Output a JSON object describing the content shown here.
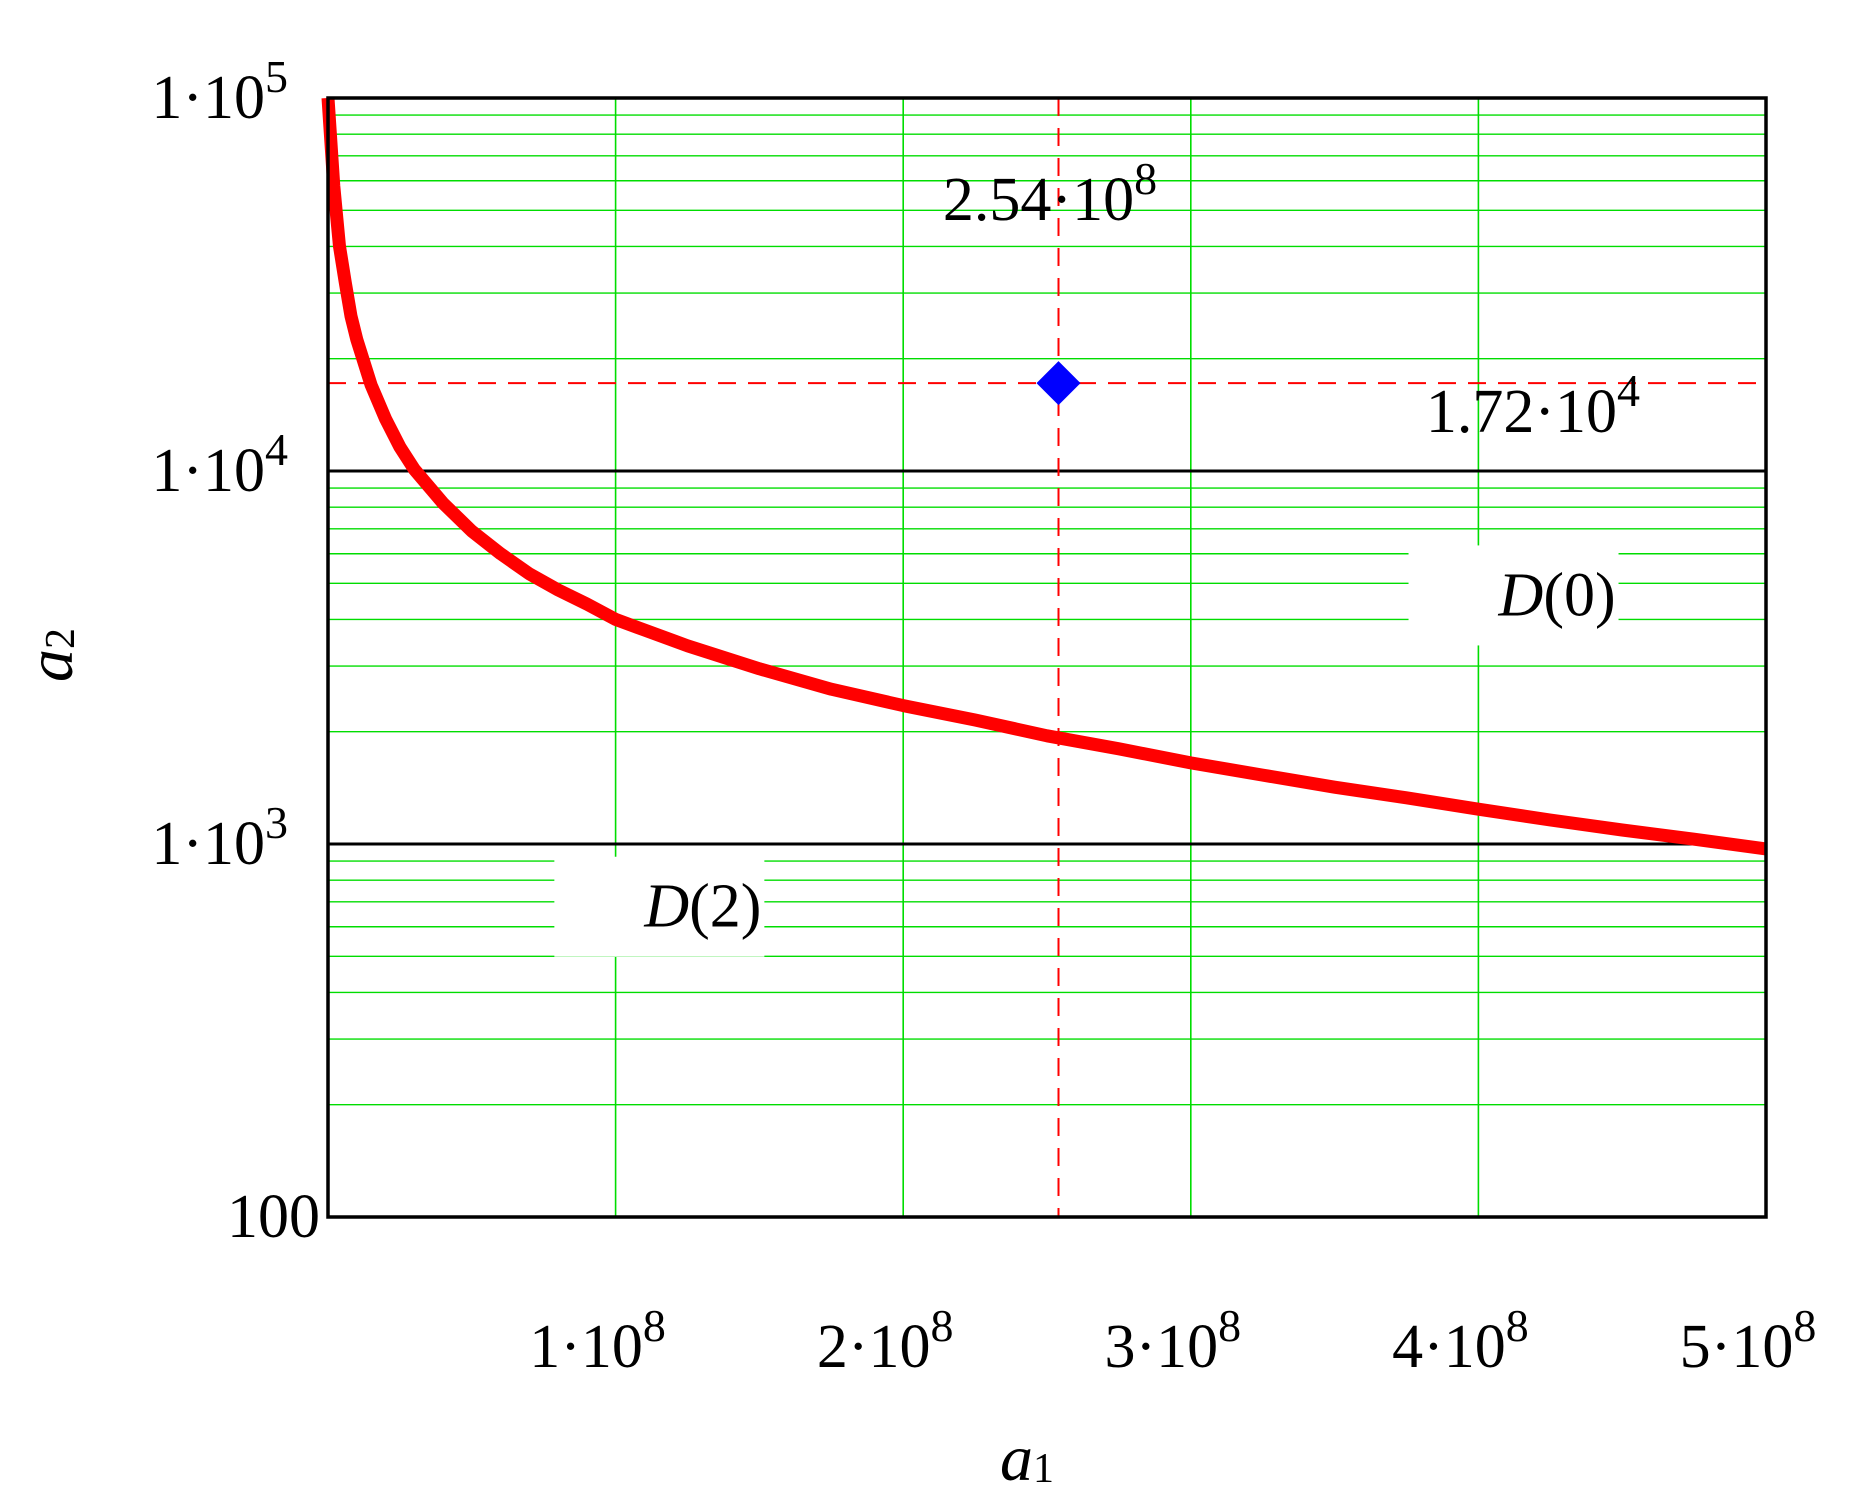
{
  "chart_data": {
    "type": "line",
    "x_axis": {
      "label_main": "a",
      "label_sub": "1",
      "scale": "linear",
      "range": [
        0,
        500000000
      ],
      "major_ticks": [
        {
          "value": 100000000,
          "mantissa": "1",
          "exp": "8"
        },
        {
          "value": 200000000,
          "mantissa": "2",
          "exp": "8"
        },
        {
          "value": 300000000,
          "mantissa": "3",
          "exp": "8"
        },
        {
          "value": 400000000,
          "mantissa": "4",
          "exp": "8"
        },
        {
          "value": 500000000,
          "mantissa": "5",
          "exp": "8"
        }
      ]
    },
    "y_axis": {
      "label_main": "a",
      "label_sub": "2",
      "scale": "log",
      "range": [
        100,
        100000
      ],
      "major_ticks": [
        {
          "value": 100,
          "text": "100"
        },
        {
          "value": 1000,
          "mantissa": "1",
          "exp": "3"
        },
        {
          "value": 10000,
          "mantissa": "1",
          "exp": "4"
        },
        {
          "value": 100000,
          "mantissa": "1",
          "exp": "5"
        }
      ]
    },
    "grid": true,
    "series": [
      {
        "color": "#ff0000",
        "points": [
          [
            0,
            100000
          ],
          [
            2000000,
            58000
          ],
          [
            4000000,
            40000
          ],
          [
            6000000,
            32000
          ],
          [
            8000000,
            26000
          ],
          [
            10000000,
            22500
          ],
          [
            15000000,
            17000
          ],
          [
            20000000,
            13800
          ],
          [
            25000000,
            11600
          ],
          [
            30000000,
            10100
          ],
          [
            40000000,
            8200
          ],
          [
            50000000,
            6900
          ],
          [
            60000000,
            6000
          ],
          [
            70000000,
            5300
          ],
          [
            80000000,
            4800
          ],
          [
            90000000,
            4400
          ],
          [
            100000000,
            4000
          ],
          [
            125000000,
            3400
          ],
          [
            150000000,
            2950
          ],
          [
            175000000,
            2600
          ],
          [
            200000000,
            2350
          ],
          [
            225000000,
            2150
          ],
          [
            250000000,
            1950
          ],
          [
            275000000,
            1800
          ],
          [
            300000000,
            1650
          ],
          [
            325000000,
            1530
          ],
          [
            350000000,
            1420
          ],
          [
            375000000,
            1330
          ],
          [
            400000000,
            1240
          ],
          [
            425000000,
            1160
          ],
          [
            450000000,
            1090
          ],
          [
            475000000,
            1030
          ],
          [
            500000000,
            970
          ]
        ]
      }
    ],
    "point": {
      "x": 254000000,
      "y": 17200,
      "color": "#0000ff",
      "marker": "diamond"
    },
    "reference_lines": {
      "color": "#ff0000",
      "style": "dashed",
      "x": 254000000,
      "y": 17200
    },
    "horizontal_lines": [
      1000,
      10000
    ],
    "annotations": {
      "x_value": {
        "mantissa": "2.54",
        "exp": "8"
      },
      "y_value": {
        "mantissa": "1.72",
        "exp": "4"
      }
    },
    "regions": [
      {
        "name": "D",
        "arg": "(0)",
        "at": {
          "x": 407000000,
          "y": 4100
        }
      },
      {
        "name": "D",
        "arg": "(2)",
        "at": {
          "x": 110000000,
          "y": 600
        }
      }
    ],
    "colors": {
      "grid": "#00dd00",
      "axes": "#000000"
    }
  }
}
